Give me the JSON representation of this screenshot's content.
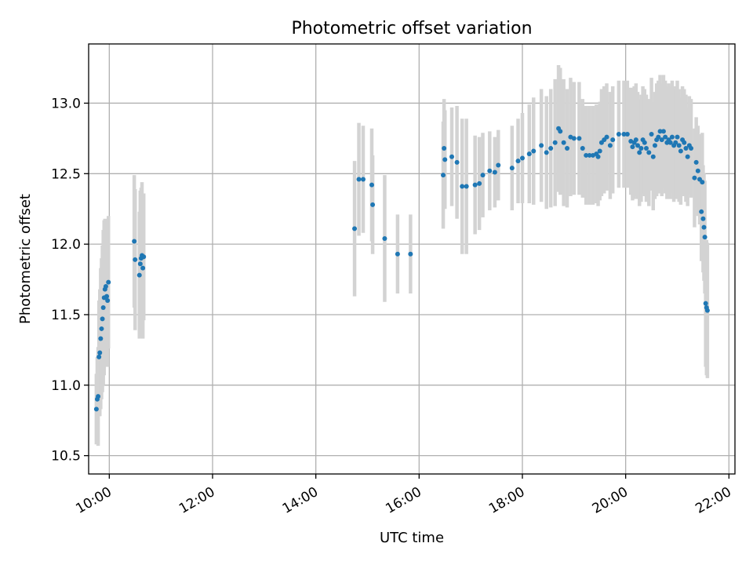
{
  "chart_data": {
    "type": "scatter",
    "title": "Photometric offset variation",
    "xlabel": "UTC time",
    "ylabel": "Photometric offset",
    "xlim": [
      "09:36",
      "22:07"
    ],
    "ylim": [
      10.37,
      13.42
    ],
    "x_ticks": [
      "10:00",
      "12:00",
      "14:00",
      "16:00",
      "18:00",
      "20:00",
      "22:00"
    ],
    "y_ticks": [
      "10.5",
      "11.0",
      "11.5",
      "12.0",
      "12.5",
      "13.0"
    ],
    "grid": true,
    "error_bars": true,
    "points": [
      {
        "t": "09:45",
        "y": 10.83,
        "e": 0.25
      },
      {
        "t": "09:46",
        "y": 10.9,
        "e": 0.3
      },
      {
        "t": "09:47",
        "y": 10.92,
        "e": 0.35
      },
      {
        "t": "09:48",
        "y": 11.2,
        "e": 0.4
      },
      {
        "t": "09:49",
        "y": 11.23,
        "e": 0.45
      },
      {
        "t": "09:50",
        "y": 11.33,
        "e": 0.5
      },
      {
        "t": "09:51",
        "y": 11.4,
        "e": 0.5
      },
      {
        "t": "09:52",
        "y": 11.47,
        "e": 0.52
      },
      {
        "t": "09:53",
        "y": 11.55,
        "e": 0.55
      },
      {
        "t": "09:54",
        "y": 11.62,
        "e": 0.55
      },
      {
        "t": "09:55",
        "y": 11.68,
        "e": 0.5
      },
      {
        "t": "09:56",
        "y": 11.7,
        "e": 0.45
      },
      {
        "t": "09:57",
        "y": 11.63,
        "e": 0.45
      },
      {
        "t": "09:58",
        "y": 11.6,
        "e": 0.47
      },
      {
        "t": "09:59",
        "y": 11.73,
        "e": 0.47
      },
      {
        "t": "10:29",
        "y": 12.02,
        "e": 0.47
      },
      {
        "t": "10:30",
        "y": 11.89,
        "e": 0.5
      },
      {
        "t": "10:35",
        "y": 11.78,
        "e": 0.45
      },
      {
        "t": "10:36",
        "y": 11.86,
        "e": 0.52
      },
      {
        "t": "10:37",
        "y": 11.9,
        "e": 0.5
      },
      {
        "t": "10:38",
        "y": 11.92,
        "e": 0.52
      },
      {
        "t": "10:39",
        "y": 11.83,
        "e": 0.5
      },
      {
        "t": "10:40",
        "y": 11.91,
        "e": 0.45
      },
      {
        "t": "14:45",
        "y": 12.11,
        "e": 0.48
      },
      {
        "t": "14:50",
        "y": 12.46,
        "e": 0.4
      },
      {
        "t": "14:55",
        "y": 12.46,
        "e": 0.38
      },
      {
        "t": "15:05",
        "y": 12.42,
        "e": 0.4
      },
      {
        "t": "15:06",
        "y": 12.28,
        "e": 0.35
      },
      {
        "t": "15:20",
        "y": 12.04,
        "e": 0.45
      },
      {
        "t": "15:35",
        "y": 11.93,
        "e": 0.28
      },
      {
        "t": "15:50",
        "y": 11.93,
        "e": 0.28
      },
      {
        "t": "16:28",
        "y": 12.49,
        "e": 0.38
      },
      {
        "t": "16:29",
        "y": 12.68,
        "e": 0.35
      },
      {
        "t": "16:30",
        "y": 12.6,
        "e": 0.35
      },
      {
        "t": "16:38",
        "y": 12.62,
        "e": 0.35
      },
      {
        "t": "16:44",
        "y": 12.58,
        "e": 0.4
      },
      {
        "t": "16:50",
        "y": 12.41,
        "e": 0.48
      },
      {
        "t": "16:55",
        "y": 12.41,
        "e": 0.48
      },
      {
        "t": "17:05",
        "y": 12.42,
        "e": 0.35
      },
      {
        "t": "17:10",
        "y": 12.43,
        "e": 0.33
      },
      {
        "t": "17:14",
        "y": 12.49,
        "e": 0.3
      },
      {
        "t": "17:22",
        "y": 12.52,
        "e": 0.28
      },
      {
        "t": "17:28",
        "y": 12.51,
        "e": 0.25
      },
      {
        "t": "17:32",
        "y": 12.56,
        "e": 0.25
      },
      {
        "t": "17:48",
        "y": 12.54,
        "e": 0.3
      },
      {
        "t": "17:55",
        "y": 12.59,
        "e": 0.3
      },
      {
        "t": "18:00",
        "y": 12.61,
        "e": 0.32
      },
      {
        "t": "18:08",
        "y": 12.64,
        "e": 0.35
      },
      {
        "t": "18:13",
        "y": 12.66,
        "e": 0.38
      },
      {
        "t": "18:22",
        "y": 12.7,
        "e": 0.4
      },
      {
        "t": "18:28",
        "y": 12.65,
        "e": 0.4
      },
      {
        "t": "18:33",
        "y": 12.68,
        "e": 0.42
      },
      {
        "t": "18:38",
        "y": 12.72,
        "e": 0.45
      },
      {
        "t": "18:42",
        "y": 12.82,
        "e": 0.45
      },
      {
        "t": "18:44",
        "y": 12.8,
        "e": 0.45
      },
      {
        "t": "18:48",
        "y": 12.72,
        "e": 0.45
      },
      {
        "t": "18:52",
        "y": 12.68,
        "e": 0.42
      },
      {
        "t": "18:56",
        "y": 12.76,
        "e": 0.42
      },
      {
        "t": "19:00",
        "y": 12.75,
        "e": 0.4
      },
      {
        "t": "19:06",
        "y": 12.75,
        "e": 0.4
      },
      {
        "t": "19:10",
        "y": 12.68,
        "e": 0.35
      },
      {
        "t": "19:14",
        "y": 12.63,
        "e": 0.35
      },
      {
        "t": "19:18",
        "y": 12.63,
        "e": 0.35
      },
      {
        "t": "19:22",
        "y": 12.63,
        "e": 0.35
      },
      {
        "t": "19:26",
        "y": 12.64,
        "e": 0.35
      },
      {
        "t": "19:28",
        "y": 12.62,
        "e": 0.35
      },
      {
        "t": "19:30",
        "y": 12.66,
        "e": 0.35
      },
      {
        "t": "19:32",
        "y": 12.72,
        "e": 0.38
      },
      {
        "t": "19:35",
        "y": 12.74,
        "e": 0.38
      },
      {
        "t": "19:38",
        "y": 12.76,
        "e": 0.38
      },
      {
        "t": "19:42",
        "y": 12.7,
        "e": 0.38
      },
      {
        "t": "19:45",
        "y": 12.74,
        "e": 0.38
      },
      {
        "t": "19:52",
        "y": 12.78,
        "e": 0.38
      },
      {
        "t": "19:58",
        "y": 12.78,
        "e": 0.38
      },
      {
        "t": "20:02",
        "y": 12.78,
        "e": 0.38
      },
      {
        "t": "20:06",
        "y": 12.73,
        "e": 0.38
      },
      {
        "t": "20:08",
        "y": 12.69,
        "e": 0.38
      },
      {
        "t": "20:10",
        "y": 12.72,
        "e": 0.4
      },
      {
        "t": "20:12",
        "y": 12.74,
        "e": 0.4
      },
      {
        "t": "20:14",
        "y": 12.7,
        "e": 0.38
      },
      {
        "t": "20:16",
        "y": 12.65,
        "e": 0.38
      },
      {
        "t": "20:18",
        "y": 12.68,
        "e": 0.38
      },
      {
        "t": "20:20",
        "y": 12.74,
        "e": 0.38
      },
      {
        "t": "20:22",
        "y": 12.72,
        "e": 0.38
      },
      {
        "t": "20:24",
        "y": 12.68,
        "e": 0.38
      },
      {
        "t": "20:27",
        "y": 12.65,
        "e": 0.38
      },
      {
        "t": "20:30",
        "y": 12.78,
        "e": 0.4
      },
      {
        "t": "20:32",
        "y": 12.62,
        "e": 0.38
      },
      {
        "t": "20:34",
        "y": 12.7,
        "e": 0.38
      },
      {
        "t": "20:36",
        "y": 12.74,
        "e": 0.4
      },
      {
        "t": "20:38",
        "y": 12.76,
        "e": 0.4
      },
      {
        "t": "20:40",
        "y": 12.8,
        "e": 0.4
      },
      {
        "t": "20:42",
        "y": 12.74,
        "e": 0.4
      },
      {
        "t": "20:44",
        "y": 12.8,
        "e": 0.4
      },
      {
        "t": "20:46",
        "y": 12.76,
        "e": 0.4
      },
      {
        "t": "20:48",
        "y": 12.72,
        "e": 0.4
      },
      {
        "t": "20:50",
        "y": 12.74,
        "e": 0.4
      },
      {
        "t": "20:52",
        "y": 12.72,
        "e": 0.4
      },
      {
        "t": "20:54",
        "y": 12.76,
        "e": 0.4
      },
      {
        "t": "20:56",
        "y": 12.7,
        "e": 0.4
      },
      {
        "t": "20:58",
        "y": 12.72,
        "e": 0.4
      },
      {
        "t": "21:00",
        "y": 12.76,
        "e": 0.4
      },
      {
        "t": "21:02",
        "y": 12.7,
        "e": 0.4
      },
      {
        "t": "21:04",
        "y": 12.66,
        "e": 0.38
      },
      {
        "t": "21:06",
        "y": 12.74,
        "e": 0.38
      },
      {
        "t": "21:08",
        "y": 12.72,
        "e": 0.38
      },
      {
        "t": "21:10",
        "y": 12.68,
        "e": 0.38
      },
      {
        "t": "21:12",
        "y": 12.62,
        "e": 0.35
      },
      {
        "t": "21:14",
        "y": 12.7,
        "e": 0.35
      },
      {
        "t": "21:16",
        "y": 12.68,
        "e": 0.35
      },
      {
        "t": "21:20",
        "y": 12.47,
        "e": 0.35
      },
      {
        "t": "21:22",
        "y": 12.58,
        "e": 0.32
      },
      {
        "t": "21:24",
        "y": 12.52,
        "e": 0.32
      },
      {
        "t": "21:26",
        "y": 12.46,
        "e": 0.32
      },
      {
        "t": "21:28",
        "y": 12.23,
        "e": 0.35
      },
      {
        "t": "21:29",
        "y": 12.44,
        "e": 0.35
      },
      {
        "t": "21:30",
        "y": 12.18,
        "e": 0.38
      },
      {
        "t": "21:31",
        "y": 12.12,
        "e": 0.38
      },
      {
        "t": "21:32",
        "y": 12.05,
        "e": 0.4
      },
      {
        "t": "21:33",
        "y": 11.58,
        "e": 0.45
      },
      {
        "t": "21:34",
        "y": 11.55,
        "e": 0.48
      },
      {
        "t": "21:35",
        "y": 11.53,
        "e": 0.48
      }
    ]
  },
  "style": {
    "point_color": "#1f77b4",
    "errorbar_color": "#d3d3d3",
    "grid_color": "#b0b0b0"
  }
}
